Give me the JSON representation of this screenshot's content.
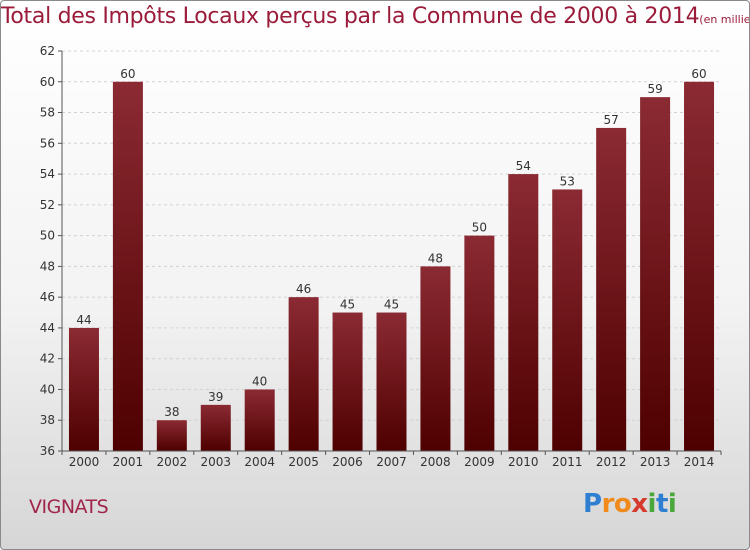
{
  "chart_data": {
    "type": "bar",
    "title": "Total des Impôts Locaux perçus par la Commune de 2000 à 2014",
    "subtitle": "(en milliers d'€)",
    "xlabel": "",
    "ylabel": "",
    "categories": [
      "2000",
      "2001",
      "2002",
      "2003",
      "2004",
      "2005",
      "2006",
      "2007",
      "2008",
      "2009",
      "2010",
      "2011",
      "2012",
      "2013",
      "2014"
    ],
    "values": [
      44,
      60,
      38,
      39,
      40,
      46,
      45,
      45,
      48,
      50,
      54,
      53,
      57,
      59,
      60
    ],
    "ylim": [
      36,
      62
    ],
    "yticks": [
      36,
      38,
      40,
      42,
      44,
      46,
      48,
      50,
      52,
      54,
      56,
      58,
      60,
      62
    ],
    "grid": true,
    "legend": "none",
    "bar_color_top": "#8b2a33",
    "bar_color_bottom": "#4e0000"
  },
  "commune": "VIGNATS",
  "logo": {
    "letters": [
      "P",
      "r",
      "o",
      "x",
      "i",
      "t",
      "i"
    ],
    "colors": [
      "#2e7fd1",
      "#f08a1c",
      "#f08a1c",
      "#d63a2c",
      "#4aa83a",
      "#2e7fd1",
      "#4aa83a"
    ]
  }
}
